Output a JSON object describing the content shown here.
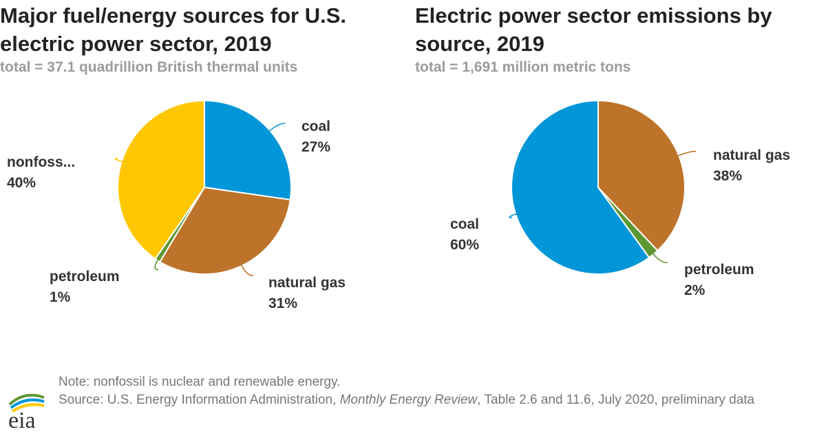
{
  "chart_data": [
    {
      "type": "pie",
      "title": "Major fuel/energy sources for U.S.\nelectric power sector, 2019",
      "subtitle": "total = 37.1 quadrillion British thermal units",
      "slices": [
        {
          "label": "coal",
          "value": 27,
          "value_label": "27%",
          "color": "#0096d7"
        },
        {
          "label": "natural gas",
          "value": 31,
          "value_label": "31%",
          "color": "#bd732a"
        },
        {
          "label": "petroleum",
          "value": 1,
          "value_label": "1%",
          "color": "#5d9732"
        },
        {
          "label": "nonfoss...",
          "value": 40,
          "value_label": "40%",
          "color": "#ffc702"
        }
      ]
    },
    {
      "type": "pie",
      "title": "Electric power sector emissions by\nsource, 2019",
      "subtitle": "total = 1,691 million metric tons",
      "slices": [
        {
          "label": "natural gas",
          "value": 38,
          "value_label": "38%",
          "color": "#bd732a"
        },
        {
          "label": "petroleum",
          "value": 2,
          "value_label": "2%",
          "color": "#5d9732"
        },
        {
          "label": "coal",
          "value": 60,
          "value_label": "60%",
          "color": "#0096d7"
        }
      ]
    }
  ],
  "footer": {
    "note": "Note: nonfossil is nuclear and renewable energy.",
    "source_prefix": "Source: U.S. Energy Information Administration, ",
    "source_italic": "Monthly Energy Review",
    "source_suffix": ", Table 2.6 and 11.6, July 2020, preliminary data"
  },
  "logo": {
    "text": "eia"
  }
}
